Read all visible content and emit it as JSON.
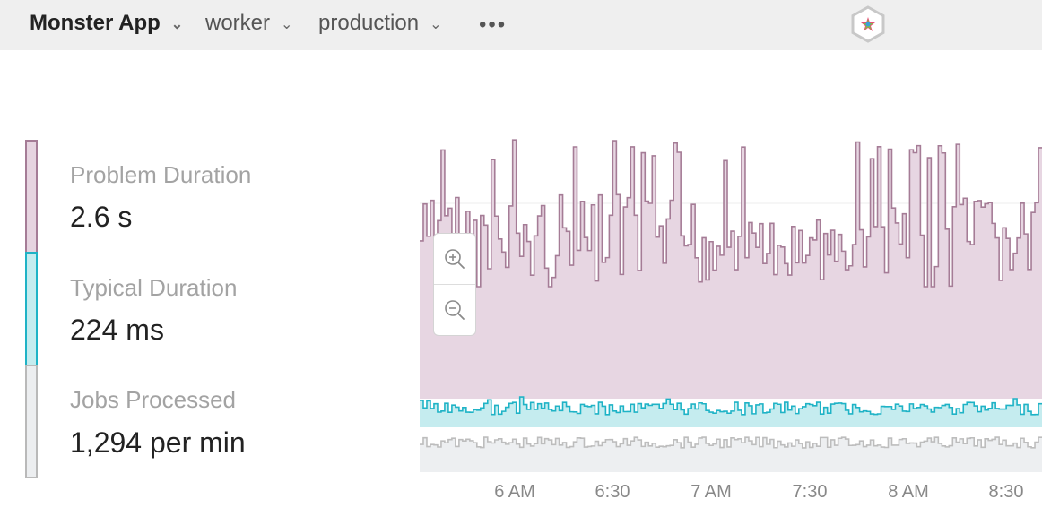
{
  "header": {
    "app": "Monster App",
    "worker": "worker",
    "environment": "production",
    "more": "•••",
    "logo_icon": "monster-logo-icon"
  },
  "metrics": [
    {
      "label": "Problem Duration",
      "value": "2.6 s",
      "color": "#e6d4e0",
      "border": "#a57c96"
    },
    {
      "label": "Typical Duration",
      "value": "224 ms",
      "color": "#c5ecef",
      "border": "#1fb3c6"
    },
    {
      "label": "Jobs Processed",
      "value": "1,294 per min",
      "color": "#eceef0",
      "border": "#b9b9b9"
    }
  ],
  "chart_data": {
    "type": "area",
    "x_ticks": [
      "6 AM",
      "6:30",
      "7 AM",
      "7:30",
      "8 AM",
      "8:30"
    ],
    "series": [
      {
        "color": "#a57c96",
        "fill": "#e7d6e2"
      },
      {
        "color": "#1fb3c6",
        "fill": "#c5ecef"
      },
      {
        "color": "#bdbdbd",
        "fill": "#edeff1"
      }
    ],
    "grid": true
  },
  "zoom": {
    "in_icon": "zoom-in-icon",
    "out_icon": "zoom-out-icon"
  }
}
